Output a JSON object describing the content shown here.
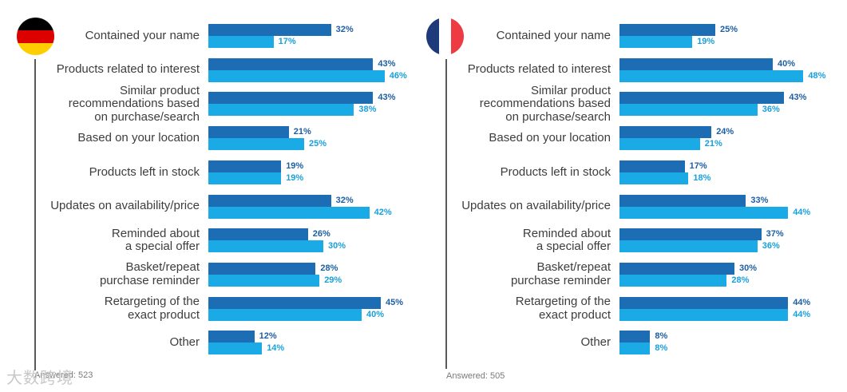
{
  "colors": {
    "series1": "#1d6db5",
    "series2": "#1aaae6"
  },
  "chart_data": [
    {
      "type": "bar",
      "orientation": "horizontal",
      "country": "Germany",
      "flag_icon": "germany-flag-icon",
      "categories": [
        "Contained your name",
        "Products related to interest",
        "Similar product\nrecommendations based\non purchase/search",
        "Based on your location",
        "Products left in stock",
        "Updates on availability/price",
        "Reminded about\na special offer",
        "Basket/repeat\npurchase reminder",
        "Retargeting of the\nexact product",
        "Other"
      ],
      "series": [
        {
          "name": "series1",
          "values": [
            32,
            43,
            43,
            21,
            19,
            32,
            26,
            28,
            45,
            12
          ]
        },
        {
          "name": "series2",
          "values": [
            17,
            46,
            38,
            25,
            19,
            42,
            30,
            29,
            40,
            14
          ]
        }
      ],
      "value_suffix": "%",
      "xlim": [
        0,
        55
      ],
      "answered": "Answered: 523"
    },
    {
      "type": "bar",
      "orientation": "horizontal",
      "country": "France",
      "flag_icon": "france-flag-icon",
      "categories": [
        "Contained your name",
        "Products related to interest",
        "Similar product\nrecommendations based\non purchase/search",
        "Based on your location",
        "Products left in stock",
        "Updates on availability/price",
        "Reminded about\na special offer",
        "Basket/repeat\npurchase reminder",
        "Retargeting of the\nexact product",
        "Other"
      ],
      "series": [
        {
          "name": "series1",
          "values": [
            25,
            40,
            43,
            24,
            17,
            33,
            37,
            30,
            44,
            8
          ]
        },
        {
          "name": "series2",
          "values": [
            19,
            48,
            36,
            21,
            18,
            44,
            36,
            28,
            44,
            8
          ]
        }
      ],
      "value_suffix": "%",
      "xlim": [
        0,
        55
      ],
      "answered": "Answered: 505"
    }
  ],
  "watermark": "大数跨境"
}
